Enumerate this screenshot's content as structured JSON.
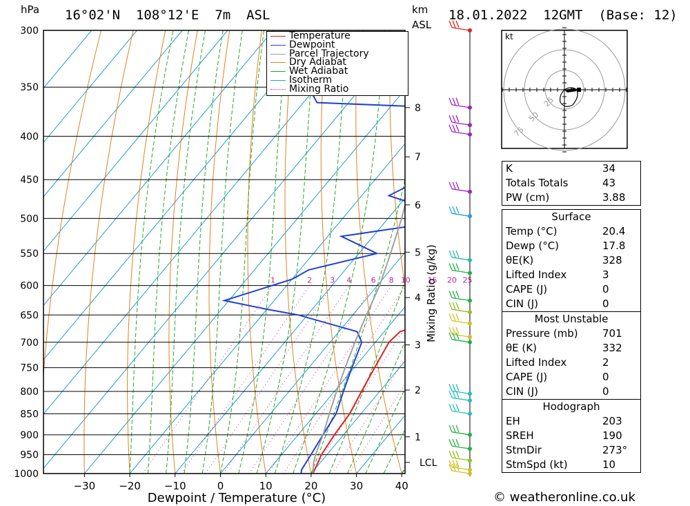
{
  "header": {
    "location": "16°02'N  108°12'E  7m  ASL",
    "datetime": "18.01.2022  12GMT  (Base: 12)",
    "pressure_unit": "hPa",
    "height_unit": "km",
    "height_unit2": "ASL"
  },
  "chart_data": {
    "type": "line",
    "title": "",
    "xlabel": "Dewpoint / Temperature (°C)",
    "ylabel": "hPa",
    "y2label": "Mixing Ratio (g/kg)",
    "x_ticks": [
      -30,
      -20,
      -10,
      0,
      10,
      20,
      30,
      40
    ],
    "pressure_levels": [
      300,
      350,
      400,
      450,
      500,
      550,
      600,
      650,
      700,
      750,
      800,
      850,
      900,
      950,
      1000
    ],
    "height_ticks_km": [
      {
        "label": "1",
        "p": 905
      },
      {
        "label": "2",
        "p": 797
      },
      {
        "label": "3",
        "p": 705
      },
      {
        "label": "4",
        "p": 620
      },
      {
        "label": "5",
        "p": 548
      },
      {
        "label": "6",
        "p": 482
      },
      {
        "label": "7",
        "p": 423
      },
      {
        "label": "8",
        "p": 370
      }
    ],
    "lcl": {
      "label": "LCL",
      "p": 970
    },
    "mixing_ratio_labels": [
      "1",
      "2",
      "3",
      "4",
      "6",
      "8",
      "10",
      "15",
      "20",
      "25"
    ],
    "legend": [
      {
        "name": "Temperature",
        "color": "#e02020",
        "style": "solid"
      },
      {
        "name": "Dewpoint",
        "color": "#1f3fd8",
        "style": "solid"
      },
      {
        "name": "Parcel Trajectory",
        "color": "#a0a0a0",
        "style": "solid"
      },
      {
        "name": "Dry Adiabat",
        "color": "#e0821e",
        "style": "solid"
      },
      {
        "name": "Wet Adiabat",
        "color": "#22aa22",
        "style": "solid"
      },
      {
        "name": "Isotherm",
        "color": "#1e9ee0",
        "style": "solid"
      },
      {
        "name": "Mixing Ratio",
        "color": "#c020a0",
        "style": "dotted"
      }
    ],
    "series": [
      {
        "name": "Temperature",
        "points": [
          [
            1000,
            20.4
          ],
          [
            950,
            18.8
          ],
          [
            900,
            18.0
          ],
          [
            850,
            17.5
          ],
          [
            800,
            16.0
          ],
          [
            750,
            14.5
          ],
          [
            700,
            13.0
          ],
          [
            680,
            13.5
          ],
          [
            660,
            19.5
          ],
          [
            650,
            18.5
          ],
          [
            600,
            13.5
          ],
          [
            550,
            5.5
          ],
          [
            500,
            -2.0
          ],
          [
            450,
            -8.0
          ],
          [
            430,
            -12.0
          ],
          [
            400,
            -16.5
          ],
          [
            385,
            -18.0
          ],
          [
            370,
            -19.0
          ],
          [
            360,
            -19.5
          ]
        ]
      },
      {
        "name": "Dewpoint",
        "points": [
          [
            1000,
            17.8
          ],
          [
            990,
            17.2
          ],
          [
            950,
            16.5
          ],
          [
            900,
            15.5
          ],
          [
            850,
            14.5
          ],
          [
            800,
            12.0
          ],
          [
            750,
            9.5
          ],
          [
            700,
            7.0
          ],
          [
            680,
            4.0
          ],
          [
            650,
            -12.0
          ],
          [
            640,
            -20.0
          ],
          [
            625,
            -31.0
          ],
          [
            590,
            -20.0
          ],
          [
            575,
            -18.0
          ],
          [
            550,
            -6.0
          ],
          [
            525,
            -17.0
          ],
          [
            510,
            -3.0
          ],
          [
            500,
            -4.0
          ],
          [
            490,
            -1.0
          ],
          [
            470,
            -14.0
          ],
          [
            460,
            -12.0
          ],
          [
            445,
            -2.0
          ],
          [
            440,
            -9.0
          ],
          [
            435,
            -14.0
          ],
          [
            420,
            -9.0
          ],
          [
            410,
            -18.0
          ],
          [
            400,
            -10.0
          ],
          [
            390,
            -9.0
          ],
          [
            380,
            -8.0
          ],
          [
            370,
            -19.0
          ],
          [
            365,
            -47.0
          ],
          [
            340,
            -55.0
          ],
          [
            300,
            -36.0
          ]
        ]
      },
      {
        "name": "Parcel Trajectory",
        "points": [
          [
            1000,
            20.4
          ],
          [
            970,
            18.5
          ],
          [
            950,
            17.5
          ],
          [
            900,
            15.5
          ],
          [
            850,
            13.0
          ],
          [
            800,
            10.5
          ],
          [
            750,
            8.0
          ],
          [
            700,
            5.5
          ],
          [
            650,
            3.0
          ],
          [
            600,
            0.5
          ],
          [
            550,
            -3.0
          ],
          [
            500,
            -7.0
          ],
          [
            450,
            -12.0
          ],
          [
            400,
            -18.0
          ],
          [
            350,
            -25.5
          ],
          [
            300,
            -34.0
          ]
        ]
      }
    ],
    "wind_barbs": [
      {
        "p": 300,
        "color": "#e02020"
      },
      {
        "p": 370,
        "color": "#a020c0"
      },
      {
        "p": 388,
        "color": "#a020c0"
      },
      {
        "p": 398,
        "color": "#a020c0"
      },
      {
        "p": 465,
        "color": "#a020c0"
      },
      {
        "p": 497,
        "color": "#20a0e0"
      },
      {
        "p": 560,
        "color": "#20c0a0"
      },
      {
        "p": 580,
        "color": "#20b040"
      },
      {
        "p": 625,
        "color": "#20b040"
      },
      {
        "p": 645,
        "color": "#90c020"
      },
      {
        "p": 665,
        "color": "#d0c020"
      },
      {
        "p": 690,
        "color": "#d0c020"
      },
      {
        "p": 700,
        "color": "#20b040"
      },
      {
        "p": 805,
        "color": "#20c0c0"
      },
      {
        "p": 820,
        "color": "#20c0c0"
      },
      {
        "p": 850,
        "color": "#20c0c0"
      },
      {
        "p": 900,
        "color": "#20b040"
      },
      {
        "p": 935,
        "color": "#20b040"
      },
      {
        "p": 965,
        "color": "#90c020"
      },
      {
        "p": 990,
        "color": "#d0c020"
      },
      {
        "p": 1000,
        "color": "#d0c020"
      }
    ],
    "hodograph": {
      "unit": "kt",
      "ring_labels": [
        "25",
        "50",
        "75"
      ]
    }
  },
  "indices": {
    "top": [
      {
        "key": "K",
        "value": "34"
      },
      {
        "key": "Totals Totals",
        "value": "43"
      },
      {
        "key": "PW (cm)",
        "value": "3.88"
      }
    ],
    "surface_title": "Surface",
    "surface": [
      {
        "key": "Temp (°C)",
        "value": "20.4"
      },
      {
        "key": "Dewp (°C)",
        "value": "17.8"
      },
      {
        "key": "θE(K)",
        "value": "328"
      },
      {
        "key": "Lifted Index",
        "value": "3"
      },
      {
        "key": "CAPE (J)",
        "value": "0"
      },
      {
        "key": "CIN (J)",
        "value": "0"
      }
    ],
    "mu_title": "Most Unstable",
    "mu": [
      {
        "key": "Pressure (mb)",
        "value": "701"
      },
      {
        "key": "θE (K)",
        "value": "332"
      },
      {
        "key": "Lifted Index",
        "value": "2"
      },
      {
        "key": "CAPE (J)",
        "value": "0"
      },
      {
        "key": "CIN (J)",
        "value": "0"
      }
    ],
    "hodo_title": "Hodograph",
    "hodo": [
      {
        "key": "EH",
        "value": "203"
      },
      {
        "key": "SREH",
        "value": "190"
      },
      {
        "key": "StmDir",
        "value": "273°"
      },
      {
        "key": "StmSpd (kt)",
        "value": "10"
      }
    ]
  },
  "credit": "© weatheronline.co.uk"
}
